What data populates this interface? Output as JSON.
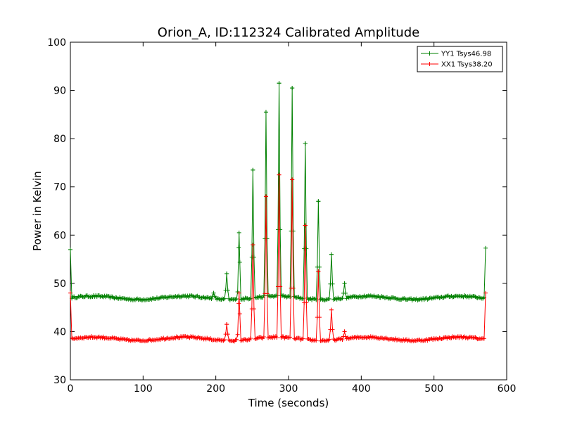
{
  "chart_data": {
    "type": "line",
    "title": "Orion_A, ID:112324 Calibrated Amplitude",
    "xlabel": "Time (seconds)",
    "ylabel": "Power in Kelvin",
    "xlim": [
      0,
      600
    ],
    "ylim": [
      30,
      100
    ],
    "xticks": [
      "0",
      "100",
      "200",
      "300",
      "400",
      "500",
      "600"
    ],
    "yticks": [
      "30",
      "40",
      "50",
      "60",
      "70",
      "80",
      "90",
      "100"
    ],
    "grid": false,
    "legend_position": "top-right",
    "series": [
      {
        "name": "YY1 Tsys46.98",
        "color": "#008000",
        "baseline": 47.0,
        "start_value": 57.0,
        "end_value": 57.3,
        "peaks": [
          {
            "t": 197,
            "v": 48.0
          },
          {
            "t": 215,
            "v": 52.0
          },
          {
            "t": 232,
            "v": 60.5
          },
          {
            "t": 251,
            "v": 73.5
          },
          {
            "t": 269,
            "v": 85.5
          },
          {
            "t": 287,
            "v": 91.5
          },
          {
            "t": 305,
            "v": 90.5
          },
          {
            "t": 323,
            "v": 79.0
          },
          {
            "t": 341,
            "v": 67.0
          },
          {
            "t": 359,
            "v": 56.0
          },
          {
            "t": 377,
            "v": 50.0
          }
        ]
      },
      {
        "name": "XX1 Tsys38.20",
        "color": "#ff0000",
        "baseline": 38.5,
        "start_value": 48.0,
        "end_value": 48.0,
        "peaks": [
          {
            "t": 215,
            "v": 41.5
          },
          {
            "t": 232,
            "v": 48.0
          },
          {
            "t": 251,
            "v": 58.0
          },
          {
            "t": 269,
            "v": 68.0
          },
          {
            "t": 287,
            "v": 72.5
          },
          {
            "t": 305,
            "v": 71.5
          },
          {
            "t": 323,
            "v": 62.0
          },
          {
            "t": 341,
            "v": 52.5
          },
          {
            "t": 359,
            "v": 44.5
          },
          {
            "t": 377,
            "v": 40.0
          }
        ]
      }
    ],
    "time_range": [
      0,
      571
    ]
  }
}
